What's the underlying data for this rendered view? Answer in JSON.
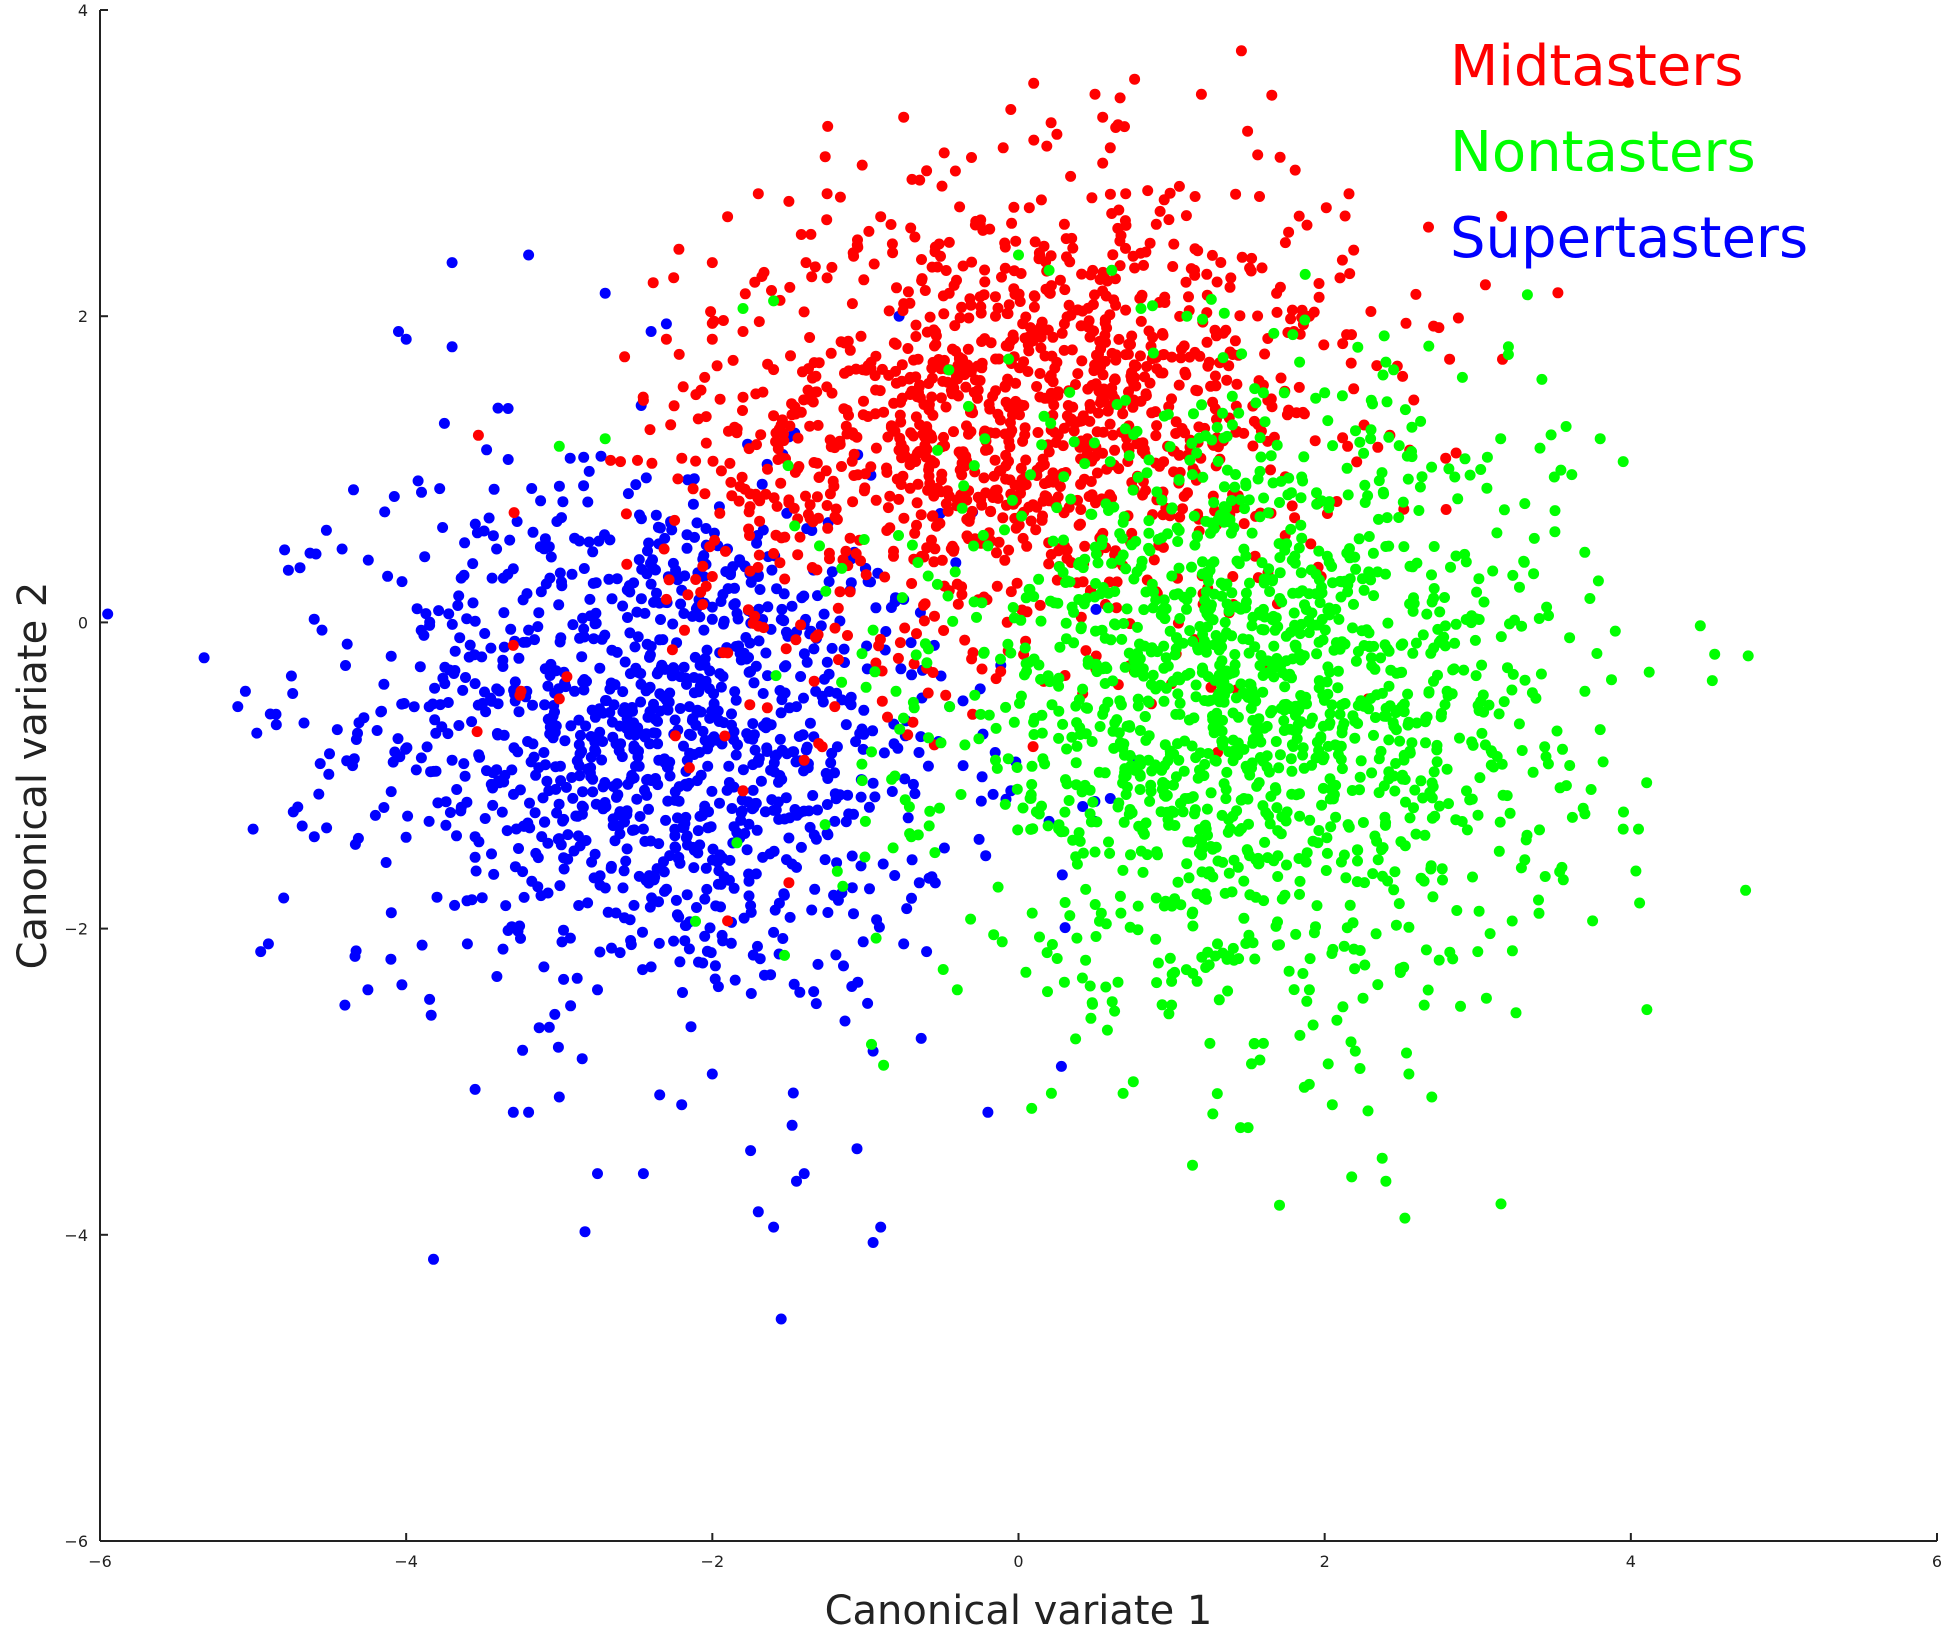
{
  "chart_data": {
    "type": "scatter",
    "title": "",
    "xlabel": "Canonical variate 1",
    "ylabel": "Canonical variate 2",
    "xlim": [
      -6,
      6
    ],
    "ylim": [
      -6,
      4
    ],
    "xticks": [
      -6,
      -4,
      -2,
      0,
      2,
      4,
      6
    ],
    "yticks": [
      -6,
      -4,
      -2,
      0,
      2,
      4
    ],
    "grid": false,
    "legend_position": "top-right",
    "series": [
      {
        "name": "Midtasters",
        "color": "#ff0000",
        "center": [
          0.0,
          1.35
        ],
        "spread": [
          1.1,
          0.75
        ],
        "points": [
          [
            -1.7,
            2.8
          ],
          [
            -1.5,
            2.75
          ],
          [
            -1.9,
            2.65
          ],
          [
            -0.75,
            3.3
          ],
          [
            -0.05,
            3.35
          ],
          [
            0.5,
            3.45
          ],
          [
            0.55,
            3.3
          ],
          [
            0.65,
            3.25
          ],
          [
            0.6,
            3.1
          ],
          [
            0.55,
            3.0
          ],
          [
            -0.1,
            3.1
          ],
          [
            0.1,
            3.15
          ],
          [
            -0.6,
            2.95
          ],
          [
            -1.25,
            2.8
          ],
          [
            -2.0,
            2.35
          ],
          [
            -2.0,
            1.85
          ],
          [
            -2.05,
            1.6
          ],
          [
            -2.3,
            1.85
          ],
          [
            -2.45,
            1.45
          ],
          [
            -2.6,
            1.05
          ],
          [
            -1.8,
            1.9
          ],
          [
            -1.6,
            1.35
          ],
          [
            -1.5,
            0.8
          ],
          [
            -1.3,
            0.95
          ],
          [
            2.1,
            2.25
          ],
          [
            1.9,
            2.0
          ],
          [
            1.8,
            1.9
          ],
          [
            1.6,
            1.55
          ],
          [
            1.4,
            1.75
          ],
          [
            1.15,
            2.3
          ],
          [
            0.9,
            2.6
          ],
          [
            0.3,
            2.6
          ],
          [
            0.7,
            2.8
          ],
          [
            -0.25,
            2.6
          ],
          [
            -0.5,
            2.85
          ],
          [
            -0.9,
            2.65
          ],
          [
            -1.05,
            2.45
          ],
          [
            -1.25,
            2.25
          ],
          [
            0.95,
            1.75
          ],
          [
            1.05,
            1.55
          ],
          [
            0.45,
            1.1
          ],
          [
            0.05,
            0.9
          ],
          [
            -0.4,
            0.8
          ],
          [
            -0.85,
            0.75
          ],
          [
            -1.1,
            0.55
          ],
          [
            -1.6,
            0.45
          ],
          [
            -2.0,
            0.3
          ],
          [
            -2.3,
            0.15
          ],
          [
            -1.1,
            0.2
          ],
          [
            -0.4,
            0.25
          ],
          [
            0.3,
            0.5
          ],
          [
            -0.6,
            -0.3
          ],
          [
            -0.3,
            -0.6
          ],
          [
            -0.55,
            -0.8
          ],
          [
            -1.2,
            -0.55
          ],
          [
            -1.4,
            -0.9
          ],
          [
            -1.9,
            -1.95
          ],
          [
            -1.8,
            -1.1
          ],
          [
            -1.5,
            -1.7
          ],
          [
            -2.15,
            -0.95
          ],
          [
            -3.0,
            -0.5
          ],
          [
            -3.25,
            -0.45
          ],
          [
            -3.3,
            -0.15
          ],
          [
            1.3,
            -0.85
          ],
          [
            1.0,
            -0.4
          ],
          [
            0.9,
            0.2
          ],
          [
            1.4,
            0.3
          ],
          [
            -0.15,
            2.0
          ],
          [
            0.3,
            1.95
          ],
          [
            -0.45,
            1.65
          ]
        ]
      },
      {
        "name": "Nontasters",
        "color": "#00ff00",
        "center": [
          1.5,
          -0.55
        ],
        "spread": [
          1.0,
          0.95
        ],
        "points": [
          [
            4.75,
            -1.75
          ],
          [
            4.05,
            -1.35
          ],
          [
            3.95,
            -1.35
          ],
          [
            3.95,
            1.05
          ],
          [
            3.8,
            1.2
          ],
          [
            3.8,
            -0.7
          ],
          [
            3.7,
            -0.45
          ],
          [
            3.75,
            -1.95
          ],
          [
            3.7,
            -1.25
          ],
          [
            3.5,
            0.95
          ],
          [
            3.2,
            1.8
          ],
          [
            3.2,
            1.75
          ],
          [
            3.15,
            1.2
          ],
          [
            2.9,
            1.6
          ],
          [
            2.45,
            1.65
          ],
          [
            2.4,
            1.7
          ],
          [
            2.4,
            -3.65
          ],
          [
            2.7,
            -3.1
          ],
          [
            2.55,
            -2.95
          ],
          [
            3.25,
            -2.55
          ],
          [
            2.05,
            -3.15
          ],
          [
            1.5,
            -3.3
          ],
          [
            1.45,
            -3.3
          ],
          [
            0.75,
            -3.0
          ],
          [
            -0.4,
            -2.4
          ],
          [
            0.3,
            -2.35
          ],
          [
            0.65,
            -2.35
          ],
          [
            1.0,
            -2.5
          ],
          [
            1.25,
            -2.75
          ],
          [
            1.6,
            -2.75
          ],
          [
            -1.8,
            2.05
          ],
          [
            -1.6,
            2.1
          ],
          [
            -3.0,
            1.15
          ],
          [
            -2.7,
            1.2
          ],
          [
            -1.3,
            0.5
          ],
          [
            -0.95,
            -0.05
          ],
          [
            -1.0,
            -1.3
          ],
          [
            -0.7,
            -1.4
          ],
          [
            -0.35,
            -0.8
          ],
          [
            -0.8,
            -0.45
          ],
          [
            0.0,
            2.4
          ],
          [
            0.2,
            2.3
          ],
          [
            0.8,
            2.05
          ],
          [
            1.1,
            2.0
          ],
          [
            1.6,
            1.5
          ],
          [
            2.0,
            1.5
          ],
          [
            1.85,
            0.95
          ],
          [
            2.3,
            1.2
          ],
          [
            2.85,
            0.95
          ],
          [
            3.3,
            0.4
          ],
          [
            3.45,
            0.1
          ],
          [
            3.6,
            -0.1
          ],
          [
            3.55,
            -1.6
          ],
          [
            3.4,
            -1.9
          ],
          [
            3.0,
            -2.15
          ],
          [
            2.65,
            -2.5
          ],
          [
            2.2,
            -2.8
          ],
          [
            1.9,
            -2.4
          ],
          [
            1.3,
            -2.1
          ],
          [
            0.9,
            -1.8
          ],
          [
            0.5,
            -1.5
          ],
          [
            0.15,
            -1.2
          ],
          [
            -0.15,
            -0.9
          ],
          [
            -0.45,
            -0.55
          ],
          [
            -0.05,
            -0.2
          ],
          [
            0.35,
            0.1
          ],
          [
            0.7,
            0.35
          ],
          [
            1.05,
            0.6
          ],
          [
            1.45,
            0.8
          ],
          [
            1.85,
            0.55
          ],
          [
            2.15,
            0.2
          ],
          [
            2.5,
            -0.15
          ],
          [
            2.8,
            -0.45
          ],
          [
            3.05,
            -0.8
          ],
          [
            2.75,
            -1.2
          ],
          [
            2.35,
            -1.55
          ],
          [
            1.95,
            -1.85
          ],
          [
            1.55,
            -1.55
          ],
          [
            1.15,
            -1.25
          ],
          [
            0.85,
            -0.9
          ],
          [
            0.55,
            -0.6
          ],
          [
            0.95,
            -0.3
          ],
          [
            1.35,
            0.0
          ],
          [
            1.75,
            -0.25
          ],
          [
            2.1,
            -0.6
          ],
          [
            1.7,
            -0.95
          ],
          [
            1.3,
            -0.7
          ],
          [
            0.6,
            1.05
          ],
          [
            0.25,
            0.75
          ],
          [
            -0.2,
            0.5
          ]
        ]
      },
      {
        "name": "Supertasters",
        "color": "#0000ff",
        "center": [
          -2.35,
          -0.75
        ],
        "spread": [
          0.95,
          0.85
        ],
        "points": [
          [
            -5.1,
            -0.55
          ],
          [
            -5.05,
            -0.45
          ],
          [
            -5.0,
            -1.35
          ],
          [
            -4.95,
            -2.15
          ],
          [
            -4.9,
            -2.1
          ],
          [
            -4.85,
            -0.6
          ],
          [
            -4.8,
            -1.8
          ],
          [
            -4.75,
            -0.35
          ],
          [
            -4.6,
            -1.4
          ],
          [
            -4.55,
            -0.05
          ],
          [
            -4.45,
            -0.7
          ],
          [
            -4.4,
            -2.5
          ],
          [
            -4.05,
            1.9
          ],
          [
            -4.0,
            1.85
          ],
          [
            -3.7,
            2.35
          ],
          [
            -3.7,
            1.8
          ],
          [
            -3.2,
            2.4
          ],
          [
            -2.7,
            2.15
          ],
          [
            -2.4,
            1.9
          ],
          [
            -2.3,
            1.95
          ],
          [
            -3.4,
            1.4
          ],
          [
            -3.75,
            1.3
          ],
          [
            -3.9,
            0.85
          ],
          [
            -4.25,
            -2.4
          ],
          [
            -4.1,
            -2.2
          ],
          [
            -3.55,
            -3.05
          ],
          [
            -3.3,
            -3.2
          ],
          [
            -3.2,
            -3.2
          ],
          [
            -2.75,
            -3.6
          ],
          [
            -2.45,
            -3.6
          ],
          [
            -1.75,
            -3.45
          ],
          [
            -1.7,
            -3.85
          ],
          [
            -1.6,
            -3.95
          ],
          [
            -1.45,
            -3.65
          ],
          [
            -1.4,
            -3.6
          ],
          [
            -1.55,
            -4.55
          ],
          [
            -0.95,
            -4.05
          ],
          [
            -0.9,
            -3.95
          ],
          [
            -0.95,
            -2.8
          ],
          [
            -1.05,
            -2.35
          ],
          [
            -0.75,
            -2.1
          ],
          [
            -0.6,
            -2.15
          ],
          [
            -0.2,
            -3.2
          ],
          [
            0.28,
            -2.9
          ],
          [
            -2.0,
            -2.95
          ],
          [
            -2.2,
            -3.15
          ],
          [
            -2.85,
            -2.85
          ],
          [
            -3.0,
            -3.1
          ],
          [
            -3.6,
            -2.1
          ],
          [
            -3.85,
            -1.3
          ],
          [
            -3.65,
            -0.1
          ],
          [
            -3.3,
            0.35
          ],
          [
            -2.9,
            0.55
          ],
          [
            -2.5,
            0.9
          ],
          [
            -2.1,
            0.65
          ],
          [
            -1.7,
            0.3
          ],
          [
            -1.35,
            0.6
          ],
          [
            -1.0,
            0.35
          ],
          [
            -0.75,
            0.15
          ],
          [
            -0.55,
            -0.15
          ],
          [
            -0.45,
            -0.55
          ],
          [
            -0.65,
            -0.85
          ],
          [
            -0.95,
            -1.05
          ],
          [
            -1.2,
            -1.3
          ],
          [
            -1.45,
            -1.6
          ],
          [
            -1.75,
            -1.85
          ],
          [
            -2.05,
            -2.05
          ],
          [
            -2.4,
            -2.25
          ],
          [
            -2.75,
            -2.4
          ],
          [
            -3.1,
            -2.25
          ],
          [
            -3.35,
            -1.85
          ],
          [
            -3.55,
            -1.4
          ],
          [
            -3.7,
            -0.9
          ],
          [
            -3.55,
            -0.4
          ],
          [
            -3.2,
            -0.05
          ],
          [
            -2.8,
            0.15
          ],
          [
            -2.4,
            0.25
          ],
          [
            -2.0,
            0.1
          ],
          [
            -1.65,
            -0.2
          ],
          [
            -1.45,
            -0.55
          ],
          [
            -1.7,
            -0.9
          ],
          [
            -2.05,
            -1.2
          ],
          [
            -2.45,
            -1.35
          ],
          [
            -2.85,
            -1.2
          ],
          [
            -3.1,
            -0.85
          ],
          [
            -2.9,
            -0.45
          ],
          [
            -2.5,
            -0.3
          ],
          [
            -2.15,
            -0.55
          ],
          [
            -2.35,
            -0.9
          ],
          [
            -2.65,
            -0.75
          ],
          [
            0.6,
            -1.15
          ],
          [
            0.75,
            -0.9
          ],
          [
            0.5,
            -1.3
          ],
          [
            0.2,
            -1.3
          ],
          [
            -0.05,
            -1.1
          ]
        ]
      }
    ]
  }
}
